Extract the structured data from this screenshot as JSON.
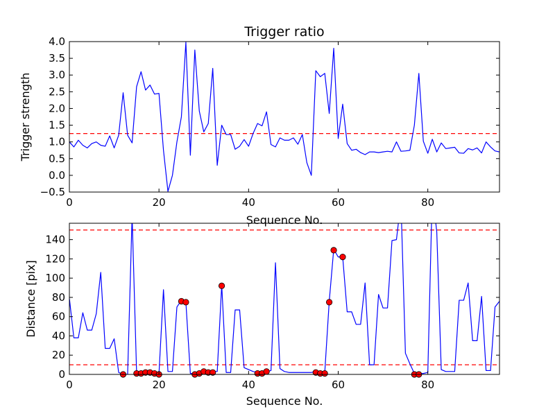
{
  "chart_data": [
    {
      "type": "line",
      "title": "Trigger ratio",
      "xlabel": "Sequence No.",
      "ylabel": "Trigger strength",
      "xlim": [
        0,
        96
      ],
      "ylim": [
        -0.5,
        4.0
      ],
      "xticks": [
        0,
        20,
        40,
        60,
        80
      ],
      "yticks": [
        -0.5,
        0.0,
        0.5,
        1.0,
        1.5,
        2.0,
        2.5,
        3.0,
        3.5,
        4.0
      ],
      "xtick_labels": [
        "0",
        "20",
        "40",
        "60",
        "80"
      ],
      "ytick_labels": [
        "−0.5",
        "0.0",
        "0.5",
        "1.0",
        "1.5",
        "2.0",
        "2.5",
        "3.0",
        "3.5",
        "4.0"
      ],
      "grid": false,
      "series": [
        {
          "color": "#0000ff",
          "x": [
            0,
            1,
            2,
            3,
            4,
            5,
            6,
            7,
            8,
            9,
            10,
            11,
            12,
            13,
            14,
            15,
            16,
            17,
            18,
            19,
            20,
            21,
            22,
            23,
            24,
            25,
            26,
            27,
            28,
            29,
            30,
            31,
            32,
            33,
            34,
            35,
            36,
            37,
            38,
            39,
            40,
            41,
            42,
            43,
            44,
            45,
            46,
            47,
            48,
            49,
            50,
            51,
            52,
            53,
            54,
            55,
            56,
            57,
            58,
            59,
            60,
            61,
            62,
            63,
            64,
            65,
            66,
            67,
            68,
            69,
            70,
            71,
            72,
            73,
            74,
            75,
            76,
            77,
            78,
            79,
            80,
            81,
            82,
            83,
            84,
            85,
            86,
            87,
            88,
            89,
            90,
            91,
            92,
            93,
            94,
            95,
            96
          ],
          "values": [
            1.0,
            0.85,
            1.05,
            0.9,
            0.82,
            0.95,
            1.0,
            0.9,
            0.87,
            1.18,
            0.82,
            1.2,
            2.47,
            1.2,
            0.97,
            2.65,
            3.1,
            2.55,
            2.7,
            2.43,
            2.45,
            0.75,
            -0.48,
            0.0,
            1.0,
            1.75,
            3.98,
            0.6,
            3.75,
            1.92,
            1.3,
            1.55,
            3.2,
            0.3,
            1.5,
            1.22,
            1.22,
            0.78,
            0.87,
            1.07,
            0.87,
            1.25,
            1.55,
            1.48,
            1.9,
            0.92,
            0.85,
            1.12,
            1.05,
            1.05,
            1.12,
            0.93,
            1.22,
            0.38,
            0.0,
            3.13,
            2.95,
            3.05,
            1.85,
            3.8,
            1.1,
            2.13,
            0.95,
            0.75,
            0.78,
            0.68,
            0.62,
            0.7,
            0.7,
            0.68,
            0.7,
            0.72,
            0.7,
            1.0,
            0.72,
            0.73,
            0.75,
            1.5,
            3.05,
            1.02,
            0.66,
            1.08,
            0.7,
            0.97,
            0.8,
            0.82,
            0.84,
            0.67,
            0.66,
            0.8,
            0.76,
            0.82,
            0.67,
            1.0,
            0.85,
            0.73,
            0.7
          ]
        }
      ],
      "hlines": [
        {
          "y": 1.25,
          "color": "#ff0000",
          "style": "dashed"
        }
      ]
    },
    {
      "type": "line",
      "title": "",
      "xlabel": "Sequence No.",
      "ylabel": "Distance [pix]",
      "xlim": [
        0,
        96
      ],
      "ylim": [
        0,
        157
      ],
      "xticks": [
        0,
        20,
        40,
        60,
        80
      ],
      "yticks": [
        0,
        20,
        40,
        60,
        80,
        100,
        120,
        140
      ],
      "xtick_labels": [
        "0",
        "20",
        "40",
        "60",
        "80"
      ],
      "ytick_labels": [
        "0",
        "20",
        "40",
        "60",
        "80",
        "100",
        "120",
        "140"
      ],
      "grid": false,
      "series": [
        {
          "color": "#0000ff",
          "x": [
            0,
            1,
            2,
            3,
            4,
            5,
            6,
            7,
            8,
            9,
            10,
            11,
            12,
            13,
            14,
            15,
            16,
            17,
            18,
            19,
            20,
            21,
            22,
            23,
            24,
            25,
            26,
            27,
            28,
            29,
            30,
            31,
            32,
            33,
            34,
            35,
            36,
            37,
            38,
            39,
            40,
            41,
            42,
            43,
            44,
            45,
            46,
            47,
            48,
            49,
            50,
            51,
            52,
            53,
            54,
            55,
            56,
            57,
            58,
            59,
            60,
            61,
            62,
            63,
            64,
            65,
            66,
            67,
            68,
            69,
            70,
            71,
            72,
            73,
            74,
            75,
            76,
            77,
            78,
            79,
            80,
            81,
            82,
            83,
            84,
            85,
            86,
            87,
            88,
            89,
            90,
            91,
            92,
            93,
            94,
            95,
            96
          ],
          "values": [
            79,
            38,
            38,
            64,
            46,
            46,
            63,
            106,
            27,
            27,
            37,
            2,
            0,
            0,
            165,
            2,
            2,
            2,
            2,
            1,
            1,
            88,
            3,
            3,
            70,
            77,
            75,
            1,
            1,
            1,
            4,
            3,
            3,
            3,
            93,
            2,
            2,
            67,
            67,
            7,
            5,
            3,
            2,
            2,
            3,
            4,
            116,
            6,
            3,
            2,
            2,
            2,
            2,
            2,
            2,
            3,
            2,
            2,
            76,
            130,
            122,
            122,
            65,
            65,
            52,
            52,
            95,
            10,
            10,
            83,
            69,
            69,
            139,
            140,
            180,
            22,
            11,
            1,
            1,
            1,
            2,
            190,
            148,
            5,
            3,
            3,
            3,
            77,
            77,
            95,
            35,
            35,
            81,
            4,
            4,
            70,
            76
          ]
        }
      ],
      "markers": {
        "color": "#ff0000",
        "x": [
          12,
          15,
          16,
          17,
          18,
          19,
          20,
          25,
          26,
          28,
          29,
          30,
          31,
          32,
          34,
          42,
          43,
          44,
          55,
          56,
          57,
          58,
          59,
          61,
          77,
          78
        ],
        "values": [
          0,
          1,
          1,
          2,
          2,
          1,
          0,
          76,
          75,
          0,
          1,
          3,
          2,
          2,
          92,
          1,
          1,
          3,
          2,
          1,
          1,
          75,
          129,
          122,
          0,
          0
        ]
      },
      "hlines": [
        {
          "y": 150,
          "color": "#ff0000",
          "style": "dashed"
        },
        {
          "y": 10,
          "color": "#ff0000",
          "style": "dashed"
        }
      ]
    }
  ]
}
